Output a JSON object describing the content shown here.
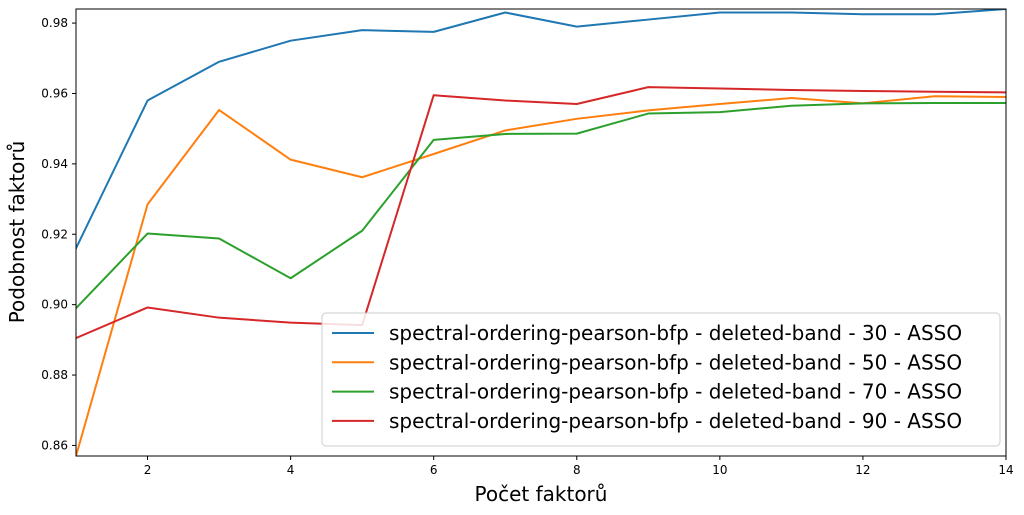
{
  "chart_data": {
    "type": "line",
    "title": "",
    "xlabel": "Počet faktorů",
    "ylabel": "Podobnost faktorů",
    "xlim": [
      1,
      14
    ],
    "ylim": [
      0.857,
      0.984
    ],
    "xticks": [
      2,
      4,
      6,
      8,
      10,
      12,
      14
    ],
    "yticks": [
      0.86,
      0.88,
      0.9,
      0.92,
      0.94,
      0.96,
      0.98
    ],
    "ytick_labels": [
      "0.86",
      "0.88",
      "0.90",
      "0.92",
      "0.94",
      "0.96",
      "0.98"
    ],
    "grid": false,
    "legend_position": "lower-right",
    "x": [
      1,
      2,
      3,
      4,
      5,
      6,
      7,
      8,
      9,
      10,
      11,
      12,
      13,
      14
    ],
    "series": [
      {
        "name": "spectral-ordering-pearson-bfp - deleted-band - 30 - ASSO",
        "color": "#1f77b4",
        "values": [
          0.916,
          0.958,
          0.969,
          0.975,
          0.978,
          0.9775,
          0.983,
          0.979,
          0.981,
          0.983,
          0.983,
          0.9825,
          0.9825,
          0.984
        ]
      },
      {
        "name": "spectral-ordering-pearson-bfp - deleted-band - 50 - ASSO",
        "color": "#ff7f0e",
        "values": [
          0.857,
          0.9285,
          0.9553,
          0.9412,
          0.9362,
          0.9428,
          0.9495,
          0.9528,
          0.9552,
          0.957,
          0.9587,
          0.9572,
          0.9592,
          0.959
        ]
      },
      {
        "name": "spectral-ordering-pearson-bfp - deleted-band - 70 - ASSO",
        "color": "#2ca02c",
        "values": [
          0.899,
          0.9202,
          0.9188,
          0.9075,
          0.921,
          0.9468,
          0.9485,
          0.9486,
          0.9543,
          0.9547,
          0.9565,
          0.9572,
          0.9573,
          0.9573
        ]
      },
      {
        "name": "spectral-ordering-pearson-bfp - deleted-band - 90 - ASSO",
        "color": "#d62728",
        "values": [
          0.8905,
          0.8992,
          0.8963,
          0.8949,
          0.8942,
          0.9595,
          0.958,
          0.957,
          0.9618,
          0.9614,
          0.961,
          0.9607,
          0.9605,
          0.9603
        ]
      }
    ]
  }
}
